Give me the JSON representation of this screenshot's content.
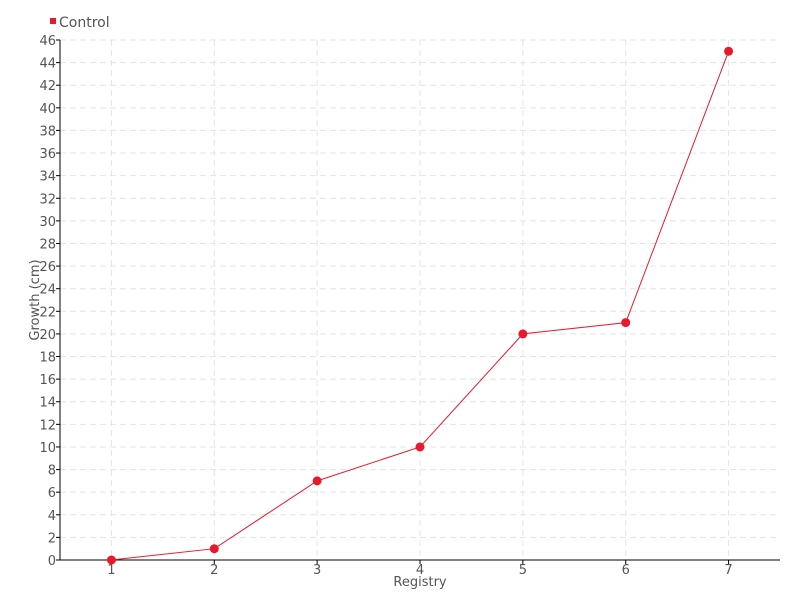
{
  "chart_data": {
    "type": "line",
    "title": "",
    "xlabel": "Registry",
    "ylabel": "Growth (cm)",
    "categories": [
      "1",
      "2",
      "3",
      "4",
      "5",
      "6",
      "7"
    ],
    "series": [
      {
        "name": "Control",
        "values": [
          0,
          1,
          7,
          10,
          20,
          21,
          45
        ],
        "color": "#e8192c"
      }
    ],
    "ylim": [
      0,
      46
    ],
    "ytick_step": 2,
    "grid": true,
    "legend": "top-left"
  }
}
